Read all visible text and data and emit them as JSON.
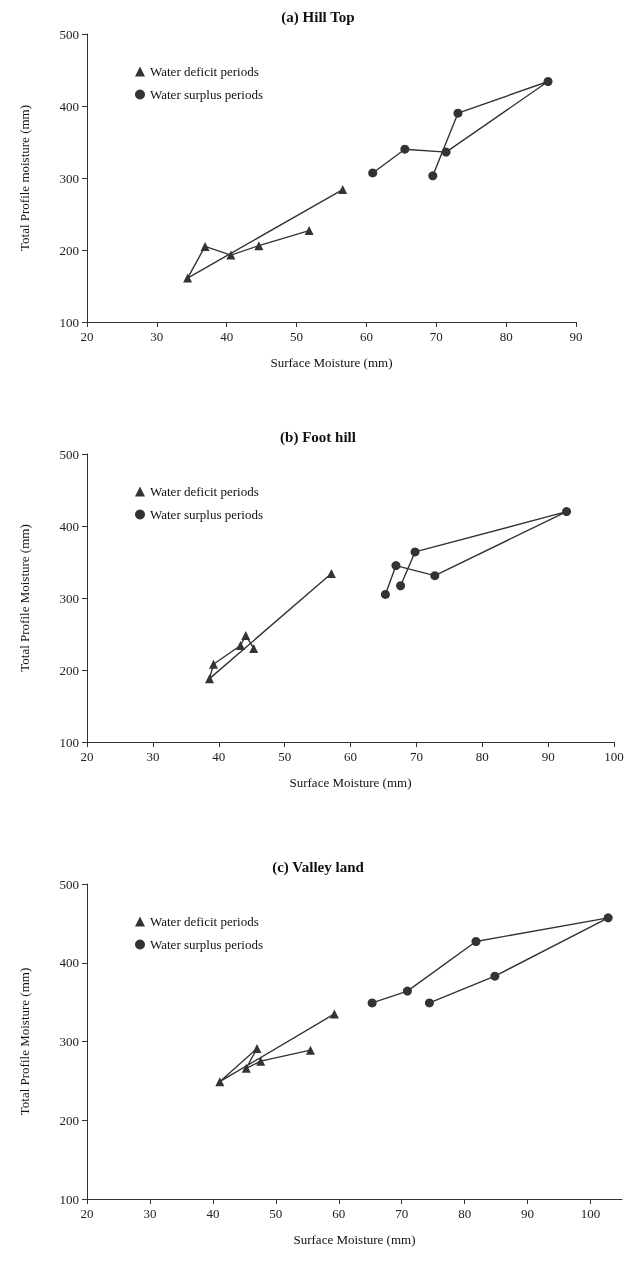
{
  "chart_data": [
    {
      "type": "line",
      "title": "(a) Hill Top",
      "xlabel": "Surface Moisture (mm)",
      "ylabel": "Total Profile moisture (mm)",
      "xlim": [
        20,
        90
      ],
      "xticks": [
        20,
        30,
        40,
        50,
        60,
        70,
        80,
        90
      ],
      "ylim": [
        100,
        500
      ],
      "yticks": [
        100,
        200,
        300,
        400,
        500
      ],
      "grid": false,
      "legend": "top left",
      "series": [
        {
          "name": "Water deficit periods",
          "color": "#333333",
          "marker": "triangle",
          "x": [
            56.6,
            34.4,
            36.9,
            40.6,
            44.6,
            51.8
          ],
          "values": [
            284,
            161,
            205,
            193,
            206,
            227
          ]
        },
        {
          "name": "Water surplus periods",
          "color": "#333333",
          "marker": "circle",
          "x": [
            60.9,
            65.5,
            71.4,
            86.0,
            73.1,
            69.5
          ],
          "values": [
            307,
            340,
            336,
            434,
            390,
            303
          ]
        }
      ]
    },
    {
      "type": "line",
      "title": "(b) Foot hill",
      "xlabel": "Surface Moisture (mm)",
      "ylabel": "Total Profile Moisture (mm)",
      "xlim": [
        20,
        100
      ],
      "xticks": [
        20,
        30,
        40,
        50,
        60,
        70,
        80,
        90,
        100
      ],
      "ylim": [
        100,
        500
      ],
      "yticks": [
        100,
        200,
        300,
        400,
        500
      ],
      "grid": false,
      "legend": "top left",
      "series": [
        {
          "name": "Water deficit periods",
          "color": "#333333",
          "marker": "triangle",
          "x": [
            57.1,
            38.6,
            39.2,
            43.3,
            44.1,
            45.3
          ],
          "values": [
            334,
            188,
            208,
            234,
            248,
            230
          ]
        },
        {
          "name": "Water surplus periods",
          "color": "#333333",
          "marker": "circle",
          "x": [
            65.3,
            66.9,
            72.8,
            92.8,
            69.8,
            67.6
          ],
          "values": [
            305,
            345,
            331,
            420,
            364,
            317
          ]
        }
      ]
    },
    {
      "type": "line",
      "title": "(c) Valley land",
      "xlabel": "Surface Moisture (mm)",
      "ylabel": "Total Profile Moisture (mm)",
      "xlim": [
        20,
        105
      ],
      "xticks": [
        20,
        30,
        40,
        50,
        60,
        70,
        80,
        90,
        100
      ],
      "ylim": [
        100,
        500
      ],
      "yticks": [
        100,
        200,
        300,
        400,
        500
      ],
      "grid": false,
      "legend": "top left",
      "series": [
        {
          "name": "Water deficit periods",
          "color": "#333333",
          "marker": "triangle",
          "x": [
            59.3,
            41.1,
            47.0,
            45.3,
            47.6,
            55.5
          ],
          "values": [
            335,
            249,
            291,
            266,
            275,
            289
          ]
        },
        {
          "name": "Water surplus periods",
          "color": "#333333",
          "marker": "circle",
          "x": [
            65.3,
            70.9,
            81.8,
            102.8,
            84.8,
            74.4
          ],
          "values": [
            349,
            364,
            427,
            457,
            383,
            349
          ]
        }
      ]
    }
  ]
}
